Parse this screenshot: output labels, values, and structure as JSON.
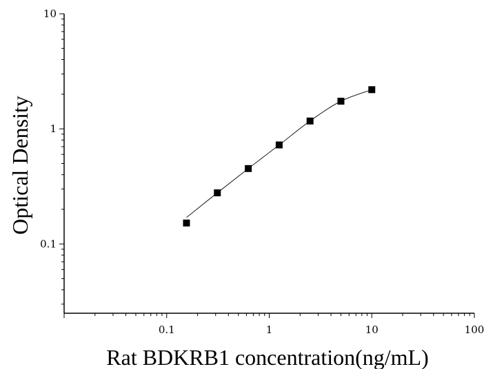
{
  "chart_data": {
    "type": "scatter",
    "xlabel": "Rat BDKRB1 concentration(ng/mL)",
    "ylabel": "Optical Density",
    "xscale": "log",
    "yscale": "log",
    "xlim": [
      0.01,
      100
    ],
    "ylim": [
      0.025,
      10
    ],
    "x_ticks": [
      0.1,
      1,
      10,
      100
    ],
    "x_tick_labels": [
      "0.1",
      "1",
      "10",
      "100"
    ],
    "y_ticks": [
      0.1,
      1,
      10
    ],
    "y_tick_labels": [
      "0.1",
      "1",
      "10"
    ],
    "grid": false,
    "legend": "none",
    "marker_color": "#000000",
    "fit_line": "smooth curve",
    "series": [
      {
        "x": [
          0.156,
          0.312,
          0.625,
          1.25,
          2.5,
          5,
          10
        ],
        "y": [
          0.152,
          0.278,
          0.452,
          0.725,
          1.17,
          1.74,
          2.19
        ]
      }
    ]
  }
}
